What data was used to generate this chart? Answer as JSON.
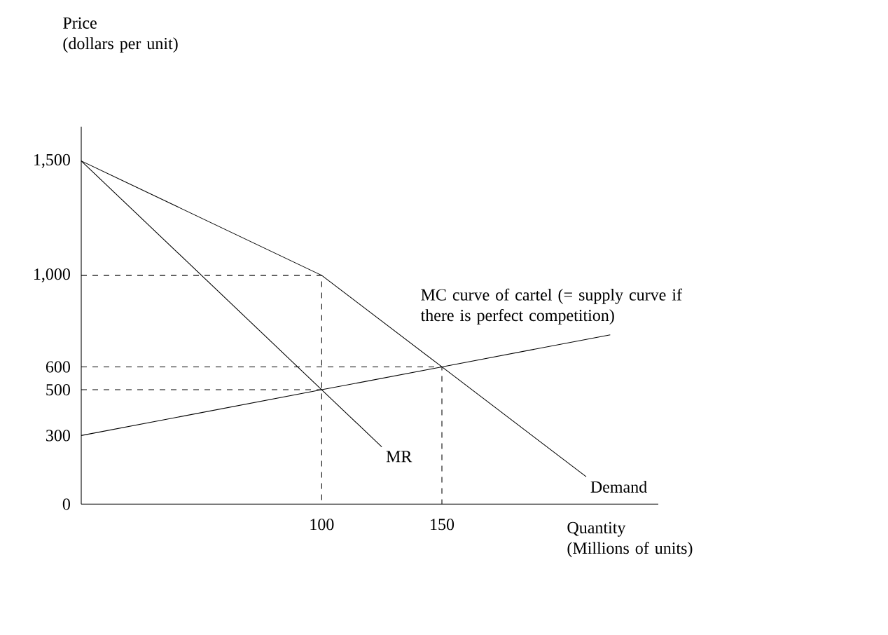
{
  "chart_data": {
    "type": "line",
    "xlabel": "Quantity\n(Millions of units)",
    "ylabel": "Price\n(dollars per unit)",
    "xlim": [
      0,
      240
    ],
    "ylim": [
      0,
      1650
    ],
    "xticks": [
      100,
      150
    ],
    "yticks": [
      0,
      300,
      500,
      600,
      {
        "value": 1000,
        "label": "1,000"
      },
      {
        "value": 1500,
        "label": "1,500"
      }
    ],
    "series": [
      {
        "name": "Demand",
        "color": "#000000",
        "x": [
          0,
          100,
          150,
          210
        ],
        "values": [
          1500,
          1000,
          600,
          120
        ]
      },
      {
        "name": "MR",
        "color": "#000000",
        "x": [
          0,
          100,
          125
        ],
        "values": [
          1500,
          500,
          250
        ]
      },
      {
        "name": "MC curve of cartel (= supply curve if there is perfect competition)",
        "color": "#000000",
        "x": [
          0,
          100,
          150,
          220
        ],
        "values": [
          300,
          500,
          600,
          740
        ]
      },
      {
        "color": "#000000",
        "line_style": "dashed",
        "x": [
          0,
          100,
          100
        ],
        "values": [
          1000,
          1000,
          0
        ]
      },
      {
        "color": "#000000",
        "line_style": "dashed",
        "x": [
          0,
          100
        ],
        "values": [
          500,
          500
        ]
      },
      {
        "color": "#000000",
        "line_style": "dashed",
        "x": [
          0,
          150,
          150
        ],
        "values": [
          600,
          600,
          0
        ]
      }
    ]
  }
}
